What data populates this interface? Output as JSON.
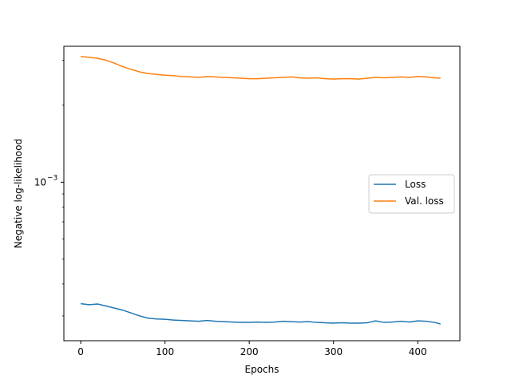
{
  "chart_data": {
    "type": "line",
    "title": "",
    "xlabel": "Epochs",
    "ylabel": "Negative log-likelihood",
    "x_scale": "linear",
    "y_scale": "log",
    "xlim": [
      -20,
      450
    ],
    "ylim": [
      0.00024,
      0.0034
    ],
    "x_ticks": [
      0,
      100,
      200,
      300,
      400
    ],
    "x_tick_labels": [
      "0",
      "100",
      "200",
      "300",
      "400"
    ],
    "y_ticks": [
      0.001
    ],
    "y_tick_labels": [
      {
        "base": "10",
        "exp": "−3"
      }
    ],
    "grid": false,
    "legend_position": "center-right",
    "series": [
      {
        "name": "Loss",
        "color": "#1f77b4",
        "x": [
          0,
          10,
          20,
          30,
          40,
          50,
          60,
          70,
          80,
          90,
          100,
          110,
          120,
          130,
          140,
          150,
          160,
          170,
          180,
          190,
          200,
          210,
          220,
          230,
          240,
          250,
          260,
          270,
          280,
          290,
          300,
          310,
          320,
          330,
          340,
          350,
          360,
          370,
          380,
          390,
          400,
          410,
          420,
          427
        ],
        "y": [
          0.000335,
          0.000332,
          0.000334,
          0.000328,
          0.000322,
          0.000316,
          0.000308,
          0.0003,
          0.000294,
          0.000292,
          0.000291,
          0.000289,
          0.000288,
          0.000287,
          0.000286,
          0.000288,
          0.000286,
          0.000285,
          0.000284,
          0.000283,
          0.000283,
          0.000284,
          0.000283,
          0.000284,
          0.000286,
          0.000285,
          0.000284,
          0.000285,
          0.000283,
          0.000282,
          0.000281,
          0.000282,
          0.000281,
          0.000281,
          0.000282,
          0.000287,
          0.000283,
          0.000284,
          0.000286,
          0.000284,
          0.000287,
          0.000286,
          0.000283,
          0.000279
        ]
      },
      {
        "name": "Val. loss",
        "color": "#ff7f0e",
        "x": [
          0,
          10,
          20,
          30,
          40,
          50,
          60,
          70,
          80,
          90,
          100,
          110,
          120,
          130,
          140,
          150,
          160,
          170,
          180,
          190,
          200,
          210,
          220,
          230,
          240,
          250,
          260,
          270,
          280,
          290,
          300,
          310,
          320,
          330,
          340,
          350,
          360,
          370,
          380,
          390,
          400,
          410,
          420,
          427
        ],
        "y": [
          0.0031,
          0.00308,
          0.00305,
          0.003,
          0.00292,
          0.00283,
          0.00276,
          0.0027,
          0.00266,
          0.00264,
          0.00262,
          0.00261,
          0.00259,
          0.00258,
          0.00257,
          0.00259,
          0.00258,
          0.00257,
          0.00256,
          0.00255,
          0.00254,
          0.00254,
          0.00255,
          0.00256,
          0.00257,
          0.00258,
          0.00256,
          0.00255,
          0.00256,
          0.00254,
          0.00253,
          0.00254,
          0.00254,
          0.00253,
          0.00255,
          0.00257,
          0.00256,
          0.00257,
          0.00258,
          0.00257,
          0.00259,
          0.00258,
          0.00256,
          0.00255
        ]
      }
    ]
  }
}
